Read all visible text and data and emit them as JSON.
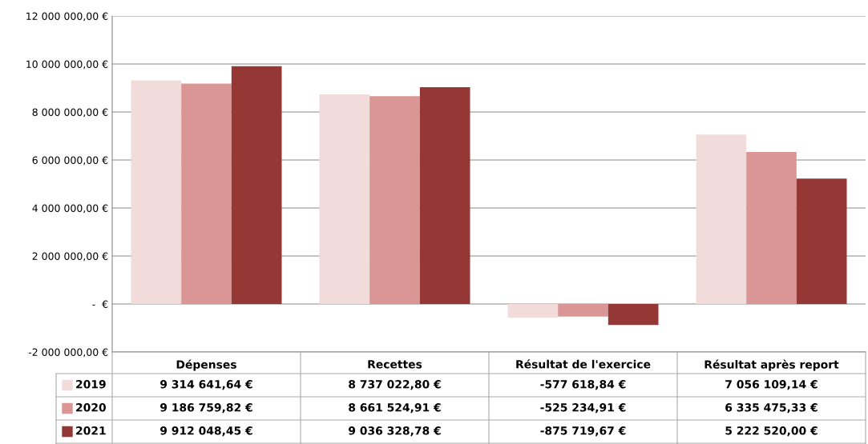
{
  "chart_data": {
    "type": "bar",
    "categories": [
      "Dépenses",
      "Recettes",
      "Résultat de l'exercice",
      "Résultat après report"
    ],
    "series": [
      {
        "name": "2019",
        "color": "#f2dcdb",
        "values": [
          9314641.64,
          8737022.8,
          -577618.84,
          7056109.14
        ],
        "value_labels": [
          "9 314 641,64 €",
          "8 737 022,80 €",
          "-577 618,84 €",
          "7 056 109,14 €"
        ]
      },
      {
        "name": "2020",
        "color": "#d99694",
        "values": [
          9186759.82,
          8661524.91,
          -525234.91,
          6335475.33
        ],
        "value_labels": [
          "9 186 759,82 €",
          "8 661 524,91 €",
          "-525 234,91 €",
          "6 335 475,33 €"
        ]
      },
      {
        "name": "2021",
        "color": "#953735",
        "values": [
          9912048.45,
          9036328.78,
          -875719.67,
          5222520.0
        ],
        "value_labels": [
          "9 912 048,45 €",
          "9 036 328,78 €",
          "-875 719,67 €",
          "5 222 520,00 €"
        ]
      }
    ],
    "ylim": [
      -2000000,
      12000000
    ],
    "yticks": [
      {
        "value": -2000000,
        "label": "-2 000 000,00 €"
      },
      {
        "value": 0,
        "label": "-  €"
      },
      {
        "value": 2000000,
        "label": "2 000 000,00 €"
      },
      {
        "value": 4000000,
        "label": "4 000 000,00 €"
      },
      {
        "value": 6000000,
        "label": "6 000 000,00 €"
      },
      {
        "value": 8000000,
        "label": "8 000 000,00 €"
      },
      {
        "value": 10000000,
        "label": "10 000 000,00 €"
      },
      {
        "value": 12000000,
        "label": "12 000 000,00 €"
      }
    ],
    "grid": "y",
    "legend": "bottom"
  }
}
